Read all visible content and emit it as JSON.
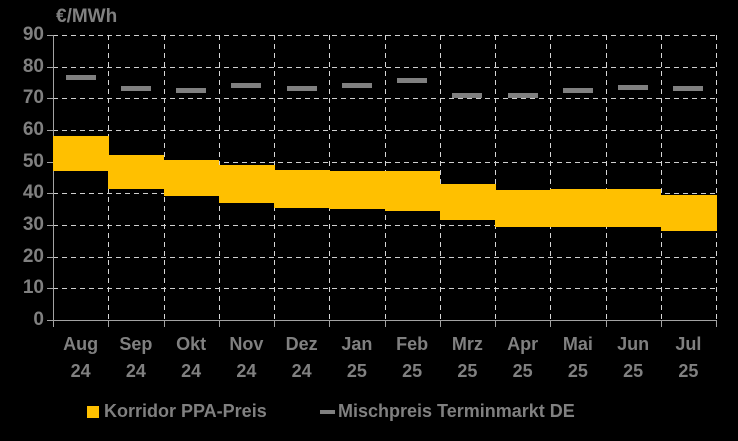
{
  "title": "€/MWh",
  "colors": {
    "background": "#000000",
    "band": "#FFC000",
    "dash_marker": "#808080",
    "text": "#808080",
    "gridline": "#D4D4D4",
    "axis": "#A3A3A3"
  },
  "legend": {
    "items": [
      {
        "label": "Korridor PPA-Preis",
        "swatch": "square",
        "color": "#FFC000"
      },
      {
        "label": "Mischpreis Terminmarkt DE",
        "swatch": "dash",
        "color": "#808080"
      }
    ]
  },
  "chart_data": {
    "type": "bar",
    "subtype": "floating-range-band-with-dash-markers",
    "title": "€/MWh",
    "xlabel": "",
    "ylabel": "€/MWh",
    "ylim": [
      0,
      90
    ],
    "yticks": [
      0,
      10,
      20,
      30,
      40,
      50,
      60,
      70,
      80,
      90
    ],
    "grid": true,
    "legend_position": "bottom",
    "categories": [
      "Aug 24",
      "Sep 24",
      "Okt 24",
      "Nov 24",
      "Dez 24",
      "Jan 25",
      "Feb 25",
      "Mrz 25",
      "Apr 25",
      "Mai 25",
      "Jun 25",
      "Jul 25"
    ],
    "category_months": [
      "Aug",
      "Sep",
      "Okt",
      "Nov",
      "Dez",
      "Jan",
      "Feb",
      "Mrz",
      "Apr",
      "Mai",
      "Jun",
      "Jul"
    ],
    "category_years": [
      "24",
      "24",
      "24",
      "24",
      "24",
      "25",
      "25",
      "25",
      "25",
      "25",
      "25",
      "25"
    ],
    "series": [
      {
        "name": "Korridor PPA-Preis",
        "type": "range",
        "color": "#FFC000",
        "low": [
          47,
          41.5,
          39,
          37,
          35.5,
          35,
          34.5,
          31.5,
          29.5,
          29.5,
          29.5,
          28
        ],
        "high": [
          58,
          52,
          50.5,
          49,
          47.5,
          47,
          47,
          43,
          41,
          41.5,
          41.5,
          39.5
        ]
      },
      {
        "name": "Mischpreis Terminmarkt DE",
        "type": "dash-marker",
        "color": "#808080",
        "values": [
          76.5,
          73,
          72.5,
          74,
          73,
          74,
          75.5,
          71,
          71,
          72.5,
          73.5,
          73
        ]
      }
    ]
  }
}
